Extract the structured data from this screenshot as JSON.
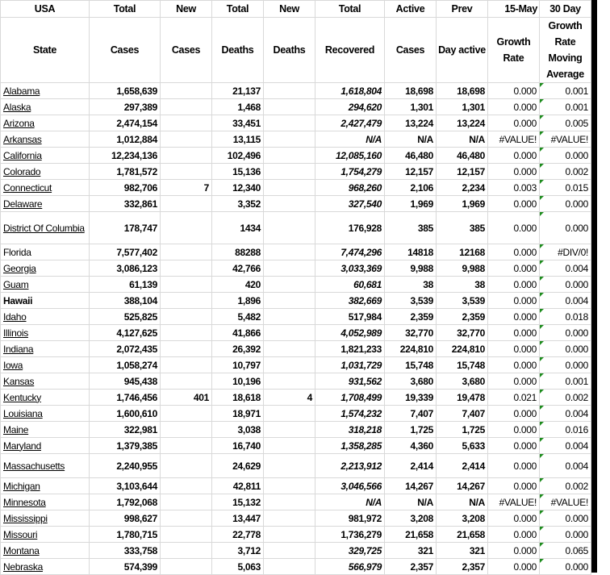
{
  "header_top": [
    "USA",
    "Total",
    "New",
    "Total",
    "New",
    "Total",
    "Active",
    "Prev",
    "15-May",
    "30 Day"
  ],
  "header_bottom": [
    "State",
    "Cases",
    "Cases",
    "Deaths",
    "Deaths",
    "Recovered",
    "Cases",
    "Day active",
    "Growth Rate",
    "Growth Rate Moving Average"
  ],
  "accent_triangle_color": "#1e8c1e",
  "rows": [
    {
      "state": "Alabama",
      "link": true,
      "cases": "1,658,639",
      "new_cases": "",
      "deaths": "21,137",
      "new_deaths": "",
      "recovered": "1,618,804",
      "rec_italic": true,
      "active": "18,698",
      "prev": "18,698",
      "growth": "0.000",
      "avg": "0.001"
    },
    {
      "state": "Alaska",
      "link": true,
      "cases": "297,389",
      "new_cases": "",
      "deaths": "1,468",
      "new_deaths": "",
      "recovered": "294,620",
      "rec_italic": true,
      "active": "1,301",
      "prev": "1,301",
      "growth": "0.000",
      "avg": "0.001"
    },
    {
      "state": "Arizona",
      "link": true,
      "cases": "2,474,154",
      "new_cases": "",
      "deaths": "33,451",
      "new_deaths": "",
      "recovered": "2,427,479",
      "rec_italic": true,
      "active": "13,224",
      "prev": "13,224",
      "growth": "0.000",
      "avg": "0.005"
    },
    {
      "state": "Arkansas",
      "link": true,
      "cases": "1,012,884",
      "new_cases": "",
      "deaths": "13,115",
      "new_deaths": "",
      "recovered": "N/A",
      "rec_italic": true,
      "active": "N/A",
      "prev": "N/A",
      "growth": "#VALUE!",
      "avg": "#VALUE!"
    },
    {
      "state": "California",
      "link": true,
      "cases": "12,234,136",
      "new_cases": "",
      "deaths": "102,496",
      "new_deaths": "",
      "recovered": "12,085,160",
      "rec_italic": true,
      "active": "46,480",
      "prev": "46,480",
      "growth": "0.000",
      "avg": "0.000"
    },
    {
      "state": "Colorado",
      "link": true,
      "cases": "1,781,572",
      "new_cases": "",
      "deaths": "15,136",
      "new_deaths": "",
      "recovered": "1,754,279",
      "rec_italic": true,
      "active": "12,157",
      "prev": "12,157",
      "growth": "0.000",
      "avg": "0.002"
    },
    {
      "state": "Connecticut",
      "link": true,
      "cases": "982,706",
      "new_cases": "7",
      "deaths": "12,340",
      "new_deaths": "",
      "recovered": "968,260",
      "rec_italic": true,
      "active": "2,106",
      "prev": "2,234",
      "growth": "0.003",
      "avg": "0.015"
    },
    {
      "state": "Delaware",
      "link": true,
      "cases": "332,861",
      "new_cases": "",
      "deaths": "3,352",
      "new_deaths": "",
      "recovered": "327,540",
      "rec_italic": true,
      "active": "1,969",
      "prev": "1,969",
      "growth": "0.000",
      "avg": "0.000"
    },
    {
      "state": "District Of Columbia",
      "link": true,
      "tall": true,
      "cases": "178,747",
      "new_cases": "",
      "deaths": "1434",
      "new_deaths": "",
      "recovered": "176,928",
      "rec_italic": false,
      "active": "385",
      "prev": "385",
      "growth": "0.000",
      "avg": "0.000"
    },
    {
      "state": "Florida",
      "link": false,
      "cases": "7,577,402",
      "new_cases": "",
      "deaths": "88288",
      "new_deaths": "",
      "recovered": "7,474,296",
      "rec_italic": true,
      "active": "14818",
      "prev": "12168",
      "growth": "0.000",
      "avg": "#DIV/0!"
    },
    {
      "state": "Georgia",
      "link": true,
      "cases": "3,086,123",
      "new_cases": "",
      "deaths": "42,766",
      "new_deaths": "",
      "recovered": "3,033,369",
      "rec_italic": true,
      "active": "9,988",
      "prev": "9,988",
      "growth": "0.000",
      "avg": "0.004"
    },
    {
      "state": "Guam",
      "link": true,
      "cases": "61,139",
      "new_cases": "",
      "deaths": "420",
      "new_deaths": "",
      "recovered": "60,681",
      "rec_italic": true,
      "active": "38",
      "prev": "38",
      "growth": "0.000",
      "avg": "0.000"
    },
    {
      "state": "Hawaii",
      "link": false,
      "bold": true,
      "cases": "388,104",
      "new_cases": "",
      "deaths": "1,896",
      "new_deaths": "",
      "recovered": "382,669",
      "rec_italic": true,
      "active": "3,539",
      "prev": "3,539",
      "growth": "0.000",
      "avg": "0.004"
    },
    {
      "state": "Idaho",
      "link": true,
      "cases": "525,825",
      "new_cases": "",
      "deaths": "5,482",
      "new_deaths": "",
      "recovered": "517,984",
      "rec_italic": false,
      "active": "2,359",
      "prev": "2,359",
      "growth": "0.000",
      "avg": "0.018"
    },
    {
      "state": "Illinois",
      "link": true,
      "cases": "4,127,625",
      "new_cases": "",
      "deaths": "41,866",
      "new_deaths": "",
      "recovered": "4,052,989",
      "rec_italic": true,
      "active": "32,770",
      "prev": "32,770",
      "growth": "0.000",
      "avg": "0.000"
    },
    {
      "state": "Indiana",
      "link": true,
      "cases": "2,072,435",
      "new_cases": "",
      "deaths": "26,392",
      "new_deaths": "",
      "recovered": "1,821,233",
      "rec_italic": false,
      "active": "224,810",
      "prev": "224,810",
      "growth": "0.000",
      "avg": "0.000"
    },
    {
      "state": "Iowa",
      "link": true,
      "cases": "1,058,274",
      "new_cases": "",
      "deaths": "10,797",
      "new_deaths": "",
      "recovered": "1,031,729",
      "rec_italic": true,
      "active": "15,748",
      "prev": "15,748",
      "growth": "0.000",
      "avg": "0.000"
    },
    {
      "state": "Kansas",
      "link": true,
      "cases": "945,438",
      "new_cases": "",
      "deaths": "10,196",
      "new_deaths": "",
      "recovered": "931,562",
      "rec_italic": true,
      "active": "3,680",
      "prev": "3,680",
      "growth": "0.000",
      "avg": "0.001"
    },
    {
      "state": "Kentucky",
      "link": true,
      "cases": "1,746,456",
      "new_cases": "401",
      "deaths": "18,618",
      "new_deaths": "4",
      "recovered": "1,708,499",
      "rec_italic": true,
      "active": "19,339",
      "prev": "19,478",
      "growth": "0.021",
      "avg": "0.002"
    },
    {
      "state": "Louisiana",
      "link": true,
      "cases": "1,600,610",
      "new_cases": "",
      "deaths": "18,971",
      "new_deaths": "",
      "recovered": "1,574,232",
      "rec_italic": true,
      "active": "7,407",
      "prev": "7,407",
      "growth": "0.000",
      "avg": "0.004"
    },
    {
      "state": "Maine",
      "link": true,
      "cases": "322,981",
      "new_cases": "",
      "deaths": "3,038",
      "new_deaths": "",
      "recovered": "318,218",
      "rec_italic": true,
      "active": "1,725",
      "prev": "1,725",
      "growth": "0.000",
      "avg": "0.016"
    },
    {
      "state": "Maryland",
      "link": true,
      "cases": "1,379,385",
      "new_cases": "",
      "deaths": "16,740",
      "new_deaths": "",
      "recovered": "1,358,285",
      "rec_italic": true,
      "active": "4,360",
      "prev": "5,633",
      "growth": "0.000",
      "avg": "0.004"
    },
    {
      "state": "Massachusetts",
      "link": true,
      "mid": true,
      "cases": "2,240,955",
      "new_cases": "",
      "deaths": "24,629",
      "new_deaths": "",
      "recovered": "2,213,912",
      "rec_italic": true,
      "active": "2,414",
      "prev": "2,414",
      "growth": "0.000",
      "avg": "0.004"
    },
    {
      "state": "Michigan",
      "link": true,
      "cases": "3,103,644",
      "new_cases": "",
      "deaths": "42,811",
      "new_deaths": "",
      "recovered": "3,046,566",
      "rec_italic": true,
      "active": "14,267",
      "prev": "14,267",
      "growth": "0.000",
      "avg": "0.002"
    },
    {
      "state": "Minnesota",
      "link": true,
      "cases": "1,792,068",
      "new_cases": "",
      "deaths": "15,132",
      "new_deaths": "",
      "recovered": "N/A",
      "rec_italic": true,
      "active": "N/A",
      "prev": "N/A",
      "growth": "#VALUE!",
      "avg": "#VALUE!"
    },
    {
      "state": "Mississippi",
      "link": true,
      "cases": "998,627",
      "new_cases": "",
      "deaths": "13,447",
      "new_deaths": "",
      "recovered": "981,972",
      "rec_italic": false,
      "active": "3,208",
      "prev": "3,208",
      "growth": "0.000",
      "avg": "0.000"
    },
    {
      "state": "Missouri",
      "link": true,
      "cases": "1,780,715",
      "new_cases": "",
      "deaths": "22,778",
      "new_deaths": "",
      "recovered": "1,736,279",
      "rec_italic": false,
      "active": "21,658",
      "prev": "21,658",
      "growth": "0.000",
      "avg": "0.000"
    },
    {
      "state": "Montana",
      "link": true,
      "cases": "333,758",
      "new_cases": "",
      "deaths": "3,712",
      "new_deaths": "",
      "recovered": "329,725",
      "rec_italic": true,
      "active": "321",
      "prev": "321",
      "growth": "0.000",
      "avg": "0.065"
    },
    {
      "state": "Nebraska",
      "link": true,
      "cases": "574,399",
      "new_cases": "",
      "deaths": "5,063",
      "new_deaths": "",
      "recovered": "566,979",
      "rec_italic": true,
      "active": "2,357",
      "prev": "2,357",
      "growth": "0.000",
      "avg": "0.000"
    }
  ]
}
